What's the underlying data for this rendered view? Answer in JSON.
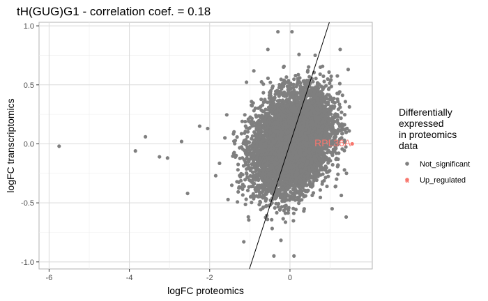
{
  "colors": {
    "not_significant": "#7f7f7f",
    "up_regulated": "#f8766d",
    "grid_major": "#d9d9d9",
    "grid_minor": "#ededed",
    "panel_border": "#b3b3b3",
    "fit_line": "#000000"
  },
  "chart_data": {
    "type": "scatter",
    "title": "tH(GUG)G1 - correlation coef. = 0.18",
    "xlabel": "logFC proteomics",
    "ylabel": "logFC transcriptomics",
    "xlim": [
      -6.25,
      2.05
    ],
    "ylim": [
      -1.06,
      1.03
    ],
    "x_ticks": [
      -6,
      -4,
      -2,
      0
    ],
    "x_tick_labels": [
      "-6",
      "-4",
      "-2",
      "0"
    ],
    "y_ticks": [
      -1.0,
      -0.5,
      0.0,
      0.5,
      1.0
    ],
    "y_tick_labels": [
      "-1.0",
      "-0.5",
      "0.0",
      "0.5",
      "1.0"
    ],
    "grid": true,
    "legend": {
      "title_lines": [
        "Differentially",
        "expressed",
        "in proteomics",
        "data"
      ],
      "placement": "right",
      "entries": [
        "Not_significant",
        "Up_regulated"
      ]
    },
    "fit_line": {
      "slope": 1.05,
      "intercept": 0.0
    },
    "series": [
      {
        "name": "Not_significant",
        "cluster": {
          "n_points": 6500,
          "x_center": 0.05,
          "x_sd": 0.48,
          "y_center": 0.02,
          "y_sd": 0.2,
          "x_range": [
            -2.0,
            1.55
          ],
          "y_range": [
            -0.98,
            0.98
          ]
        },
        "outliers": [
          {
            "x": -5.75,
            "y": -0.02
          },
          {
            "x": -3.85,
            "y": -0.06
          },
          {
            "x": -3.6,
            "y": 0.06
          },
          {
            "x": -3.25,
            "y": -0.11
          },
          {
            "x": -3.05,
            "y": -0.12
          },
          {
            "x": -2.7,
            "y": 0.02
          },
          {
            "x": -2.55,
            "y": -0.42
          },
          {
            "x": -2.25,
            "y": 0.15
          },
          {
            "x": -2.05,
            "y": 0.13
          },
          {
            "x": -1.85,
            "y": -0.27
          },
          {
            "x": -0.3,
            "y": 0.95
          },
          {
            "x": 0.05,
            "y": 0.95
          },
          {
            "x": -0.55,
            "y": 0.8
          },
          {
            "x": 1.25,
            "y": 0.8
          },
          {
            "x": 1.45,
            "y": 0.63
          },
          {
            "x": -0.4,
            "y": -0.95
          },
          {
            "x": 0.1,
            "y": -0.95
          },
          {
            "x": -1.15,
            "y": -0.83
          },
          {
            "x": 1.05,
            "y": -0.55
          },
          {
            "x": 1.4,
            "y": -0.62
          }
        ]
      },
      {
        "name": "Up_regulated",
        "points": [
          {
            "x": 1.55,
            "y": 0.0,
            "label": "RPL36A"
          }
        ]
      }
    ]
  }
}
